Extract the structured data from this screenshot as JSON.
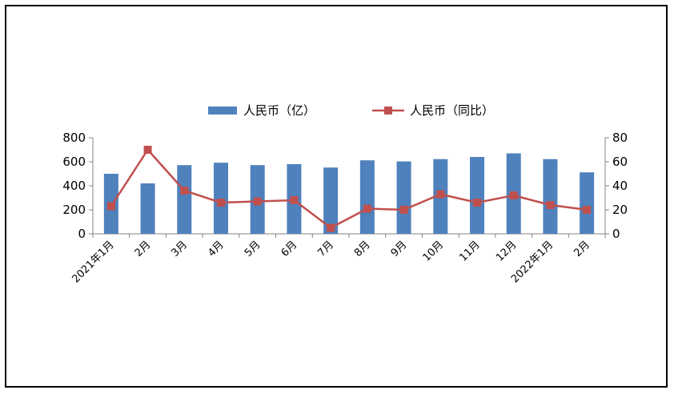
{
  "chart_data": {
    "type": "bar",
    "categories": [
      "2021年1月",
      "2月",
      "3月",
      "4月",
      "5月",
      "6月",
      "7月",
      "8月",
      "9月",
      "10月",
      "11月",
      "12月",
      "2022年1月",
      "2月"
    ],
    "series": [
      {
        "name": "人民币（亿）",
        "type": "bar",
        "axis": "left",
        "color": "#4F81BD",
        "values": [
          500,
          420,
          572,
          592,
          572,
          580,
          552,
          612,
          603,
          622,
          640,
          670,
          622,
          512
        ]
      },
      {
        "name": "人民币（同比）",
        "type": "line",
        "axis": "right",
        "color": "#C0504D",
        "values": [
          23,
          70,
          36,
          26,
          27,
          28,
          5,
          21,
          20,
          33,
          26,
          32,
          24,
          20
        ]
      }
    ],
    "y_left": {
      "min": 0,
      "max": 800,
      "ticks": [
        0,
        200,
        400,
        600,
        800
      ]
    },
    "y_right": {
      "min": 0,
      "max": 80,
      "ticks": [
        0,
        20,
        40,
        60,
        80
      ]
    },
    "legend": "top",
    "grid": false,
    "title": "",
    "xlabel": "",
    "ylabel": ""
  }
}
